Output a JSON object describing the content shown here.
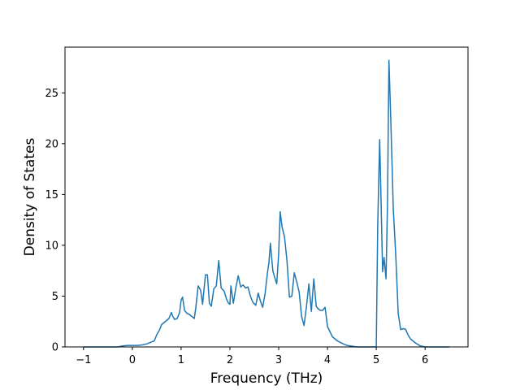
{
  "chart_data": {
    "type": "line",
    "title": "",
    "xlabel": "Frequency (THz)",
    "ylabel": "Density of States",
    "xlim": [
      -1.38,
      6.88
    ],
    "ylim": [
      0,
      29.5
    ],
    "xticks": [
      -1,
      0,
      1,
      2,
      3,
      4,
      5,
      6
    ],
    "yticks": [
      0,
      5,
      10,
      15,
      20,
      25
    ],
    "grid": false,
    "line_color": "#1f77b4",
    "series": [
      {
        "x": [
          -1.0,
          -0.5,
          -0.3,
          -0.2,
          -0.1,
          0.0,
          0.1,
          0.2,
          0.3,
          0.4,
          0.45,
          0.5,
          0.55,
          0.6,
          0.65,
          0.7,
          0.75,
          0.8,
          0.83,
          0.87,
          0.92,
          0.97,
          1.0,
          1.03,
          1.07,
          1.12,
          1.17,
          1.22,
          1.27,
          1.3,
          1.35,
          1.4,
          1.44,
          1.5,
          1.54,
          1.58,
          1.62,
          1.67,
          1.72,
          1.77,
          1.82,
          1.88,
          1.93,
          1.97,
          2.0,
          2.02,
          2.07,
          2.12,
          2.17,
          2.22,
          2.27,
          2.32,
          2.37,
          2.42,
          2.47,
          2.53,
          2.58,
          2.62,
          2.67,
          2.72,
          2.77,
          2.8,
          2.83,
          2.88,
          2.92,
          2.96,
          3.0,
          3.03,
          3.07,
          3.12,
          3.17,
          3.22,
          3.27,
          3.32,
          3.37,
          3.42,
          3.47,
          3.52,
          3.57,
          3.62,
          3.67,
          3.72,
          3.77,
          3.8,
          3.85,
          3.9,
          3.95,
          4.0,
          4.1,
          4.2,
          4.3,
          4.35,
          4.4,
          4.6,
          5.0,
          5.03,
          5.07,
          5.1,
          5.13,
          5.16,
          5.2,
          5.23,
          5.26,
          5.3,
          5.35,
          5.4,
          5.45,
          5.5,
          5.55,
          5.6,
          5.65,
          5.7,
          5.8,
          5.9,
          6.0,
          6.2,
          6.5
        ],
        "y": [
          0,
          0,
          0,
          0.1,
          0.15,
          0.15,
          0.15,
          0.2,
          0.3,
          0.5,
          0.6,
          1.2,
          1.6,
          2.2,
          2.4,
          2.6,
          2.8,
          3.4,
          3.0,
          2.7,
          2.8,
          3.4,
          4.6,
          4.9,
          3.6,
          3.3,
          3.2,
          3.0,
          2.8,
          3.8,
          6.0,
          5.6,
          4.2,
          7.1,
          7.1,
          4.3,
          4.0,
          5.7,
          6.0,
          8.5,
          5.8,
          5.5,
          4.7,
          4.3,
          4.2,
          6.0,
          4.3,
          5.8,
          7.0,
          5.9,
          6.1,
          5.8,
          5.9,
          5.0,
          4.4,
          4.1,
          5.3,
          4.6,
          3.9,
          5.2,
          7.3,
          8.3,
          10.2,
          7.5,
          6.8,
          6.2,
          9.2,
          13.3,
          11.8,
          10.8,
          8.5,
          4.9,
          5.0,
          7.3,
          6.4,
          5.4,
          3.0,
          2.1,
          4.0,
          6.2,
          3.5,
          6.7,
          4.0,
          3.8,
          3.6,
          3.6,
          3.9,
          2.0,
          1.0,
          0.6,
          0.35,
          0.25,
          0.15,
          0.0,
          0.0,
          12.0,
          20.4,
          14.0,
          7.4,
          8.8,
          6.7,
          14.0,
          28.2,
          22.0,
          13.5,
          9.0,
          3.3,
          1.7,
          1.8,
          1.75,
          1.2,
          0.8,
          0.4,
          0.1,
          0,
          0,
          0
        ]
      }
    ]
  }
}
